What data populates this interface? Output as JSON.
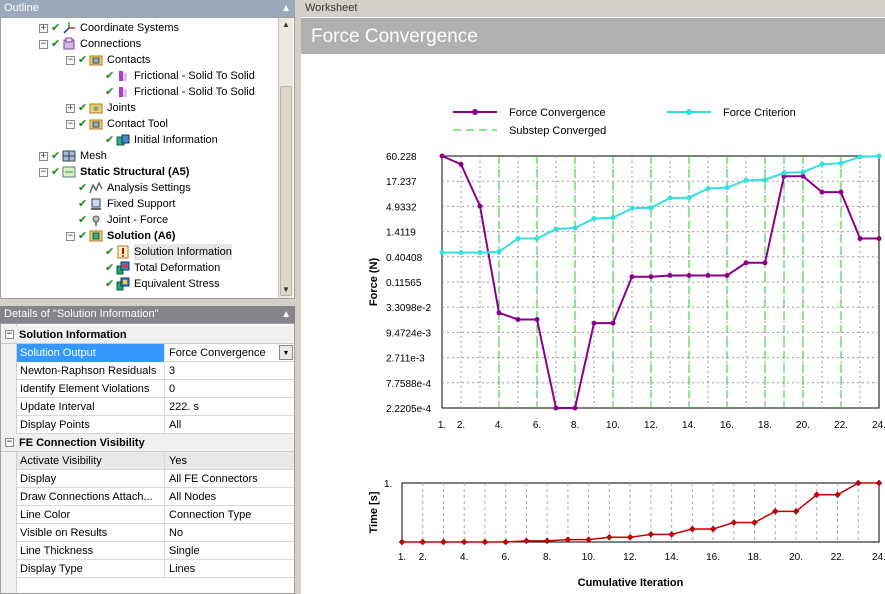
{
  "outline": {
    "title": "Outline",
    "items": [
      {
        "label": "Coordinate Systems",
        "level": 1,
        "expander": "+",
        "check": true,
        "icon": "coordinate-systems-icon"
      },
      {
        "label": "Connections",
        "level": 1,
        "expander": "-",
        "check": true,
        "icon": "connections-icon"
      },
      {
        "label": "Contacts",
        "level": 2,
        "expander": "-",
        "check": true,
        "icon": "contacts-folder-icon"
      },
      {
        "label": "Frictional - Solid To Solid",
        "level": 3,
        "expander": "",
        "check": true,
        "icon": "contact-region-icon"
      },
      {
        "label": "Frictional - Solid To Solid",
        "level": 3,
        "expander": "",
        "check": true,
        "icon": "contact-region-icon"
      },
      {
        "label": "Joints",
        "level": 2,
        "expander": "+",
        "check": true,
        "icon": "joints-folder-icon"
      },
      {
        "label": "Contact Tool",
        "level": 2,
        "expander": "-",
        "check": true,
        "icon": "contact-tool-icon"
      },
      {
        "label": "Initial Information",
        "level": 3,
        "expander": "",
        "check": true,
        "icon": "initial-information-icon"
      },
      {
        "label": "Mesh",
        "level": 1,
        "expander": "+",
        "check": true,
        "icon": "mesh-icon"
      },
      {
        "label": "Static Structural (A5)",
        "level": 1,
        "expander": "-",
        "check": true,
        "icon": "static-structural-icon",
        "bold": true
      },
      {
        "label": "Analysis Settings",
        "level": 2,
        "expander": "",
        "check": true,
        "icon": "analysis-settings-icon"
      },
      {
        "label": "Fixed Support",
        "level": 2,
        "expander": "",
        "check": true,
        "icon": "fixed-support-icon"
      },
      {
        "label": "Joint - Force",
        "level": 2,
        "expander": "",
        "check": true,
        "icon": "joint-force-icon"
      },
      {
        "label": "Solution (A6)",
        "level": 2,
        "expander": "-",
        "check": true,
        "icon": "solution-icon",
        "bold": true
      },
      {
        "label": "Solution Information",
        "level": 3,
        "expander": "",
        "check": true,
        "icon": "solution-information-icon",
        "selected": true
      },
      {
        "label": "Total Deformation",
        "level": 3,
        "expander": "",
        "check": true,
        "icon": "total-deformation-icon"
      },
      {
        "label": "Equivalent Stress",
        "level": 3,
        "expander": "",
        "check": true,
        "icon": "equivalent-stress-icon"
      }
    ]
  },
  "details": {
    "title": "Details of \"Solution Information\"",
    "groups": [
      {
        "label": "Solution Information",
        "rows": [
          {
            "name": "Solution Output",
            "value": "Force Convergence",
            "dropdown": true,
            "selected": true
          },
          {
            "name": "Newton-Raphson Residuals",
            "value": "3"
          },
          {
            "name": "Identify Element Violations",
            "value": "0"
          },
          {
            "name": "Update Interval",
            "value": "222. s"
          },
          {
            "name": "Display Points",
            "value": "All"
          }
        ]
      },
      {
        "label": "FE Connection Visibility",
        "rows": [
          {
            "name": "Activate Visibility",
            "value": "Yes",
            "hilite": true
          },
          {
            "name": "Display",
            "value": "All FE Connectors"
          },
          {
            "name": "Draw Connections Attach...",
            "value": "All Nodes"
          },
          {
            "name": "Line Color",
            "value": "Connection Type"
          },
          {
            "name": "Visible on Results",
            "value": "No"
          },
          {
            "name": "Line Thickness",
            "value": "Single"
          },
          {
            "name": "Display Type",
            "value": "Lines"
          }
        ]
      }
    ]
  },
  "worksheet": {
    "tab": "Worksheet",
    "title": "Force Convergence"
  },
  "chart_data": [
    {
      "type": "line",
      "ylabel": "Force (N)",
      "yscale": "log",
      "ylim": [
        0.00022205,
        60.228
      ],
      "yticks": [
        "60.228",
        "17.237",
        "4.9332",
        "1.4119",
        "0.40408",
        "0.11565",
        "3.3098e-2",
        "9.4724e-3",
        "2.711e-3",
        "7.7588e-4",
        "2.2205e-4"
      ],
      "xlim": [
        1,
        24
      ],
      "xticks": [
        "1.",
        "2.",
        "4.",
        "6.",
        "8.",
        "10.",
        "12.",
        "14.",
        "16.",
        "18.",
        "20.",
        "22.",
        "24."
      ],
      "legend": [
        {
          "name": "Force Convergence",
          "color": "#8b008b"
        },
        {
          "name": "Force Criterion",
          "color": "#33e0e0"
        },
        {
          "name": "Substep Converged",
          "color": "#22cc22"
        }
      ],
      "series": [
        {
          "name": "Force Convergence",
          "color": "#8b008b",
          "x": [
            1,
            2,
            3,
            4,
            5,
            6,
            7,
            8,
            9,
            10,
            11,
            12,
            13,
            14,
            15,
            16,
            17,
            18,
            19,
            20,
            21,
            22,
            23,
            24
          ],
          "y": [
            60.228,
            40.0,
            5.0,
            0.025,
            0.018,
            0.018,
            0.00022205,
            0.00022205,
            0.015,
            0.015,
            0.15,
            0.15,
            0.16,
            0.16,
            0.16,
            0.16,
            0.3,
            0.3,
            22.0,
            22.0,
            10.0,
            10.0,
            1.0,
            1.0
          ]
        },
        {
          "name": "Force Criterion",
          "color": "#33e0e0",
          "x": [
            1,
            2,
            3,
            4,
            5,
            6,
            7,
            8,
            9,
            10,
            11,
            12,
            13,
            14,
            15,
            16,
            17,
            18,
            19,
            20,
            21,
            22,
            23,
            24
          ],
          "y": [
            0.5,
            0.5,
            0.5,
            0.52,
            1.0,
            1.0,
            1.6,
            1.7,
            2.7,
            2.8,
            4.5,
            4.6,
            7.5,
            7.6,
            12.0,
            12.5,
            18.0,
            18.5,
            26.0,
            27.0,
            40.0,
            42.0,
            58.0,
            60.0
          ]
        }
      ],
      "substep_converged_x": [
        4,
        6,
        8,
        10,
        12,
        14,
        16,
        18,
        19,
        20,
        22
      ]
    },
    {
      "type": "line",
      "xlabel": "Cumulative Iteration",
      "ylabel": "Time [s]",
      "ylim": [
        0,
        1
      ],
      "yticks": [
        "1."
      ],
      "xlim": [
        1,
        24
      ],
      "xticks": [
        "1.",
        "2.",
        "4.",
        "6.",
        "8.",
        "10.",
        "12.",
        "14.",
        "16.",
        "18.",
        "20.",
        "22.",
        "24."
      ],
      "series": [
        {
          "name": "Time",
          "color": "#cc0000",
          "x": [
            1,
            2,
            3,
            4,
            5,
            6,
            7,
            8,
            9,
            10,
            11,
            12,
            13,
            14,
            15,
            16,
            17,
            18,
            19,
            20,
            21,
            22,
            23,
            24
          ],
          "y": [
            0.0,
            0.0,
            0.0,
            0.0,
            0.0,
            0.0,
            0.02,
            0.02,
            0.04,
            0.04,
            0.08,
            0.08,
            0.13,
            0.13,
            0.22,
            0.22,
            0.33,
            0.33,
            0.52,
            0.52,
            0.8,
            0.8,
            1.0,
            1.0
          ]
        }
      ]
    }
  ]
}
